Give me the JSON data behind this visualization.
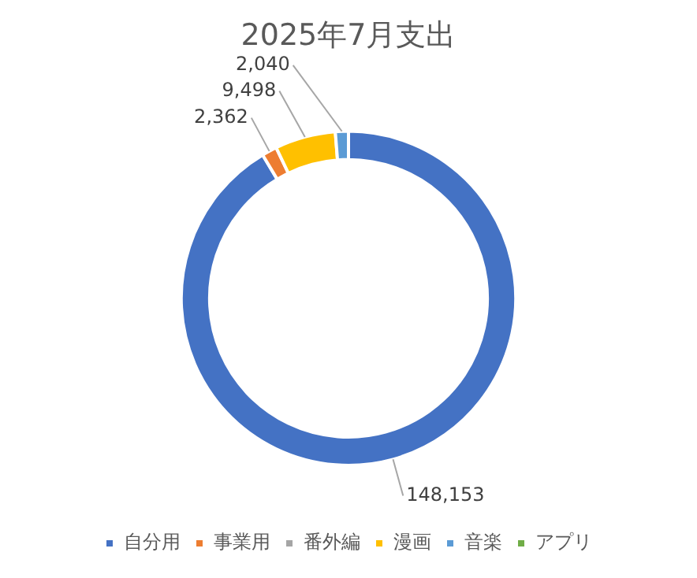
{
  "chart_data": {
    "type": "donut",
    "title": "2025年7月支出",
    "categories": [
      "自分用",
      "事業用",
      "番外編",
      "漫画",
      "音楽",
      "アプリ"
    ],
    "values": [
      148153,
      2362,
      0,
      9498,
      2040,
      0
    ],
    "colors": [
      "#4472c4",
      "#ed7d31",
      "#a5a5a5",
      "#ffc000",
      "#5b9bd5",
      "#70ad47"
    ],
    "value_labels": [
      "148,153",
      "2,362",
      null,
      "9,498",
      "2,040",
      null
    ],
    "legend": "bottom"
  }
}
